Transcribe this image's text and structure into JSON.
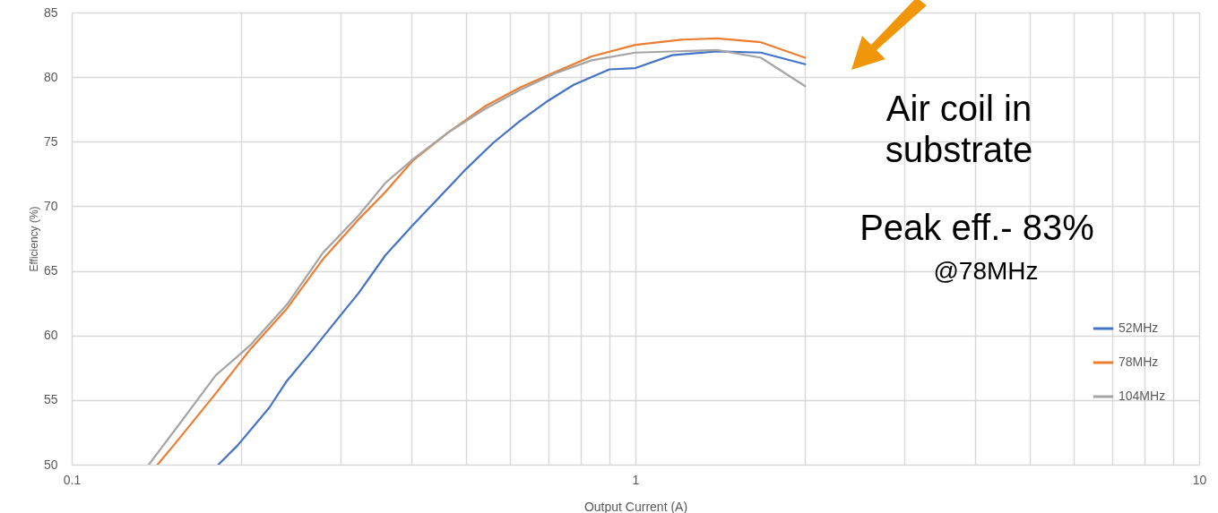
{
  "chart_data": {
    "type": "line",
    "xlabel": "Output Current (A)",
    "ylabel": "Efficiency (%)",
    "log": "x",
    "grid": true,
    "legend": "right",
    "marker": "none",
    "line_style": "solid",
    "xlim": [
      0.1,
      10
    ],
    "ylim": [
      50,
      85
    ],
    "xticks": [
      0.1,
      {
        "value": 0.2,
        "label": null
      },
      {
        "value": 0.3,
        "label": null
      },
      {
        "value": 0.4,
        "label": null
      },
      {
        "value": 0.5,
        "label": null
      },
      {
        "value": 0.6,
        "label": null
      },
      {
        "value": 0.7,
        "label": null
      },
      {
        "value": 0.8,
        "label": null
      },
      {
        "value": 0.9,
        "label": null
      },
      1,
      {
        "value": 2,
        "label": null
      },
      {
        "value": 3,
        "label": null
      },
      {
        "value": 4,
        "label": null
      },
      {
        "value": 5,
        "label": null
      },
      {
        "value": 6,
        "label": null
      },
      {
        "value": 7,
        "label": null
      },
      {
        "value": 8,
        "label": null
      },
      {
        "value": 9,
        "label": null
      },
      10
    ],
    "yticks": [
      50,
      55,
      60,
      65,
      70,
      75,
      80,
      85
    ],
    "annotations": [
      "Air coil in substrate",
      "Peak eff.- 83%",
      "@78MHz"
    ],
    "series": [
      {
        "name": "52MHz",
        "color": "#4472c4",
        "x": [
          0.182,
          0.197,
          0.224,
          0.241,
          0.269,
          0.289,
          0.323,
          0.36,
          0.402,
          0.449,
          0.501,
          0.559,
          0.624,
          0.696,
          0.777,
          0.899,
          1.0,
          1.162,
          1.396,
          1.67,
          2.0
        ],
        "values": [
          50,
          51.5,
          54.4,
          56.5,
          59.0,
          60.7,
          63.3,
          66.2,
          68.5,
          70.7,
          72.9,
          74.9,
          76.6,
          78.1,
          79.4,
          80.6,
          80.7,
          81.7,
          82.0,
          81.9,
          81.0
        ]
      },
      {
        "name": "78MHz",
        "color": "#ed7d31",
        "x": [
          0.142,
          0.155,
          0.18,
          0.208,
          0.241,
          0.279,
          0.323,
          0.36,
          0.402,
          0.465,
          0.539,
          0.624,
          0.722,
          0.836,
          1.0,
          1.205,
          1.396,
          1.67,
          2.0
        ],
        "values": [
          50,
          52.0,
          55.5,
          59.0,
          62.1,
          65.9,
          69.0,
          71.1,
          73.5,
          75.7,
          77.7,
          79.2,
          80.4,
          81.6,
          82.5,
          82.9,
          83.0,
          82.7,
          81.5
        ]
      },
      {
        "name": "104MHz",
        "color": "#a5a5a5",
        "x": [
          0.137,
          0.155,
          0.18,
          0.208,
          0.241,
          0.279,
          0.323,
          0.36,
          0.402,
          0.465,
          0.539,
          0.624,
          0.722,
          0.836,
          1.0,
          1.396,
          1.67,
          2.0
        ],
        "values": [
          50,
          53.1,
          56.9,
          59.3,
          62.4,
          66.4,
          69.3,
          71.8,
          73.6,
          75.7,
          77.5,
          79.0,
          80.3,
          81.3,
          81.9,
          82.1,
          81.5,
          79.3
        ]
      }
    ]
  }
}
